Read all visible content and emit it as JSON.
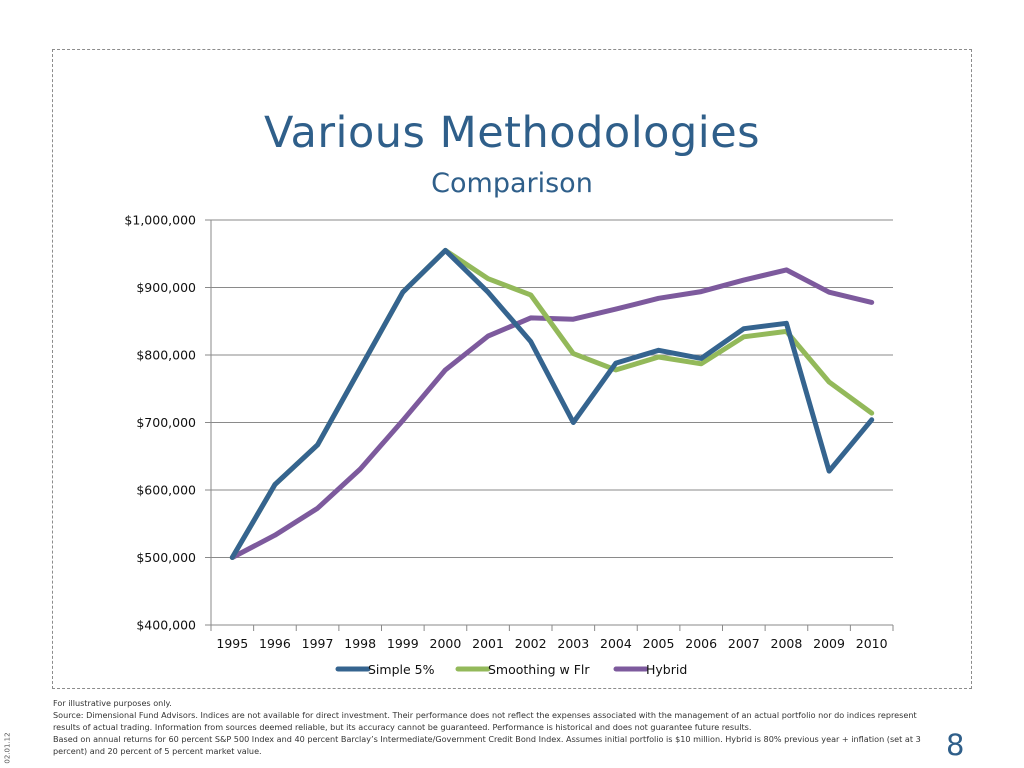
{
  "slide": {
    "title": "Various Methodologies",
    "subtitle": "Comparison",
    "page_number": "8",
    "date_stamp": "02.01.12",
    "footnotes": [
      "For illustrative purposes only.",
      "Source: Dimensional Fund Advisors. Indices are not available for direct investment. Their performance does not reflect the expenses associated with the management of an actual portfolio nor do indices represent results of actual trading. Information from sources deemed reliable, but its accuracy cannot be guaranteed. Performance is historical and does not guarantee future results.",
      "Based on annual returns for 60 percent S&P 500 Index and 40 percent Barclay’s Intermediate/Government Credit Bond Index. Assumes initial portfolio is $10 million. Hybrid is 80% previous year + inflation (set at 3 percent) and 20 percent of 5 percent market value."
    ]
  },
  "chart_data": {
    "type": "line",
    "x": [
      "1995",
      "1996",
      "1997",
      "1998",
      "1999",
      "2000",
      "2001",
      "2002",
      "2003",
      "2004",
      "2005",
      "2006",
      "2007",
      "2008",
      "2009",
      "2010"
    ],
    "ylim": [
      400000,
      1000000
    ],
    "yticks": [
      400000,
      500000,
      600000,
      700000,
      800000,
      900000,
      1000000
    ],
    "ytick_labels": [
      "$400,000",
      "$500,000",
      "$600,000",
      "$700,000",
      "$800,000",
      "$900,000",
      "$1,000,000"
    ],
    "grid": "horizontal",
    "legend_position": "bottom",
    "series": [
      {
        "name": "Simple 5%",
        "color": "#35648f",
        "values": [
          500000,
          608000,
          667000,
          780000,
          893000,
          955000,
          893000,
          820000,
          700000,
          788000,
          807000,
          795000,
          839000,
          847000,
          628000,
          704000
        ]
      },
      {
        "name": "Smoothing w Flr",
        "color": "#93b95a",
        "values": [
          500000,
          608000,
          667000,
          780000,
          893000,
          955000,
          913000,
          889000,
          802000,
          778000,
          797000,
          787000,
          827000,
          835000,
          760000,
          714000
        ]
      },
      {
        "name": "Hybrid",
        "color": "#7d5a9d",
        "values": [
          500000,
          533000,
          573000,
          631000,
          703000,
          778000,
          828000,
          855000,
          853000,
          868000,
          884000,
          894000,
          911000,
          926000,
          893000,
          878000
        ]
      }
    ]
  }
}
